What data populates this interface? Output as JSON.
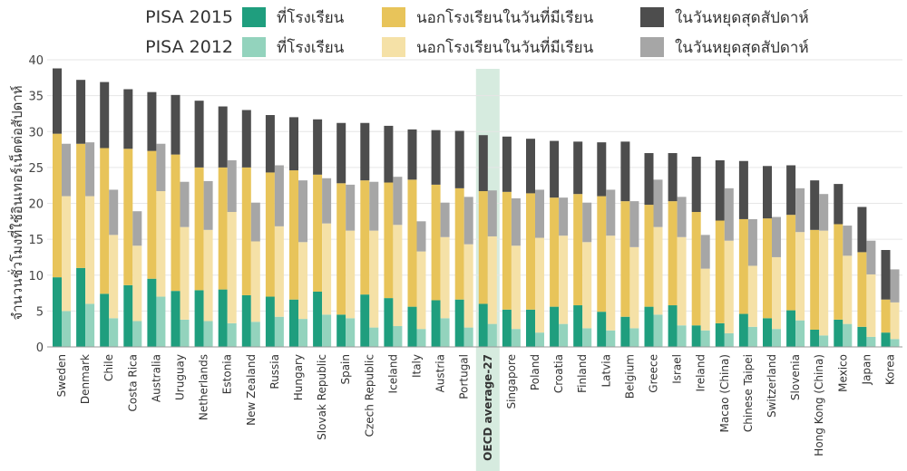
{
  "colors": {
    "pisa2015": {
      "school": "#1f9e7e",
      "outside": "#e8c45a",
      "weekend": "#4d4d4d"
    },
    "pisa2012": {
      "school": "#93d3bd",
      "outside": "#f5e1a7",
      "weekend": "#a6a6a6"
    },
    "grid": "#e6e6e6",
    "highlight": "#d6ebdf"
  },
  "legend": {
    "rows": [
      {
        "label": "PISA 2015",
        "items": [
          "ที่โรงเรียน",
          "นอกโรงเรียนในวันที่มีเรียน",
          "ในวันหยุดสุดสัปดาห์"
        ]
      },
      {
        "label": "PISA 2012",
        "items": [
          "ที่โรงเรียน",
          "นอกโรงเรียนในวันที่มีเรียน",
          "ในวันหยุดสุดสัปดาห์"
        ]
      }
    ]
  },
  "chart_data": {
    "type": "bar",
    "stacked": true,
    "ylabel": "จำนวนชั่วโมงที่ใช้อินเทอร์เน็ตต่อสัปดาห์",
    "ylim": [
      0,
      40
    ],
    "yticks": [
      0,
      5,
      10,
      15,
      20,
      25,
      30,
      35,
      40
    ],
    "grid": true,
    "legend_position": "top",
    "highlight_category": "OECD average-27",
    "categories": [
      "Sweden",
      "Denmark",
      "Chile",
      "Costa Rica",
      "Australia",
      "Uruguay",
      "Netherlands",
      "Estonia",
      "New Zealand",
      "Russia",
      "Hungary",
      "Slovak Republic",
      "Spain",
      "Czech Republic",
      "Iceland",
      "Italy",
      "Austria",
      "Portugal",
      "OECD average-27",
      "Singapore",
      "Poland",
      "Croatia",
      "Finland",
      "Latvia",
      "Belgium",
      "Greece",
      "Israel",
      "Ireland",
      "Macao (China)",
      "Chinese Taipei",
      "Switzerland",
      "Slovenia",
      "Hong Kong (China)",
      "Mexico",
      "Japan",
      "Korea"
    ],
    "series": [
      {
        "name": "PISA 2015",
        "stacks": [
          "ที่โรงเรียน",
          "นอกโรงเรียนในวันที่มีเรียน",
          "ในวันหยุดสุดสัปดาห์"
        ],
        "school": [
          9.7,
          11.0,
          7.4,
          8.6,
          9.5,
          7.8,
          7.9,
          8.0,
          7.2,
          7.0,
          6.6,
          7.7,
          4.5,
          7.3,
          6.8,
          5.6,
          6.5,
          6.6,
          6.0,
          5.2,
          5.2,
          5.6,
          5.8,
          4.9,
          4.2,
          5.6,
          5.8,
          3.0,
          3.3,
          4.6,
          4.0,
          5.1,
          2.4,
          3.8,
          2.8,
          2.0
        ],
        "outside": [
          20.0,
          17.3,
          20.3,
          19.0,
          17.8,
          19.0,
          17.1,
          17.0,
          17.8,
          17.3,
          18.0,
          16.3,
          18.3,
          15.9,
          16.1,
          17.7,
          16.1,
          15.5,
          15.7,
          16.4,
          16.2,
          15.2,
          15.5,
          16.1,
          16.1,
          14.2,
          14.5,
          15.8,
          14.3,
          13.2,
          13.9,
          13.3,
          13.9,
          13.3,
          10.4,
          4.6
        ],
        "weekend": [
          9.1,
          8.9,
          9.2,
          8.3,
          8.2,
          8.3,
          9.3,
          8.5,
          8.0,
          8.0,
          7.4,
          7.7,
          8.4,
          8.0,
          7.9,
          7.0,
          7.6,
          8.0,
          7.8,
          7.7,
          7.6,
          7.9,
          7.3,
          7.5,
          8.3,
          7.2,
          6.7,
          7.7,
          8.4,
          8.1,
          7.3,
          6.9,
          6.9,
          5.6,
          6.3,
          6.9
        ]
      },
      {
        "name": "PISA 2012",
        "stacks": [
          "ที่โรงเรียน",
          "นอกโรงเรียนในวันที่มีเรียน",
          "ในวันหยุดสุดสัปดาห์"
        ],
        "school": [
          5.0,
          6.0,
          4.0,
          3.6,
          7.0,
          3.8,
          3.6,
          3.3,
          3.5,
          4.2,
          3.9,
          4.5,
          4.0,
          2.7,
          2.9,
          2.5,
          4.0,
          2.7,
          3.2,
          2.5,
          2.0,
          3.2,
          2.6,
          2.3,
          2.6,
          4.5,
          3.0,
          2.3,
          1.9,
          2.8,
          2.5,
          3.7,
          1.6,
          3.2,
          1.4,
          1.1
        ],
        "outside": [
          16.0,
          15.0,
          11.6,
          10.5,
          14.7,
          12.9,
          12.7,
          15.5,
          11.2,
          12.6,
          10.7,
          12.7,
          12.2,
          13.5,
          14.1,
          10.8,
          11.3,
          11.6,
          12.2,
          11.6,
          13.2,
          12.3,
          12.0,
          13.2,
          11.3,
          12.2,
          12.3,
          8.6,
          12.9,
          8.5,
          10.0,
          12.3,
          14.6,
          9.5,
          8.7,
          5.1
        ],
        "weekend": [
          7.3,
          7.5,
          6.3,
          4.8,
          6.6,
          6.3,
          6.8,
          7.2,
          5.4,
          8.5,
          8.6,
          6.3,
          6.4,
          6.8,
          6.7,
          4.2,
          4.8,
          6.6,
          6.4,
          6.6,
          6.7,
          5.3,
          5.5,
          6.4,
          6.4,
          6.6,
          5.6,
          4.7,
          7.3,
          6.5,
          5.6,
          6.1,
          5.1,
          4.2,
          4.7,
          4.6
        ]
      }
    ]
  }
}
